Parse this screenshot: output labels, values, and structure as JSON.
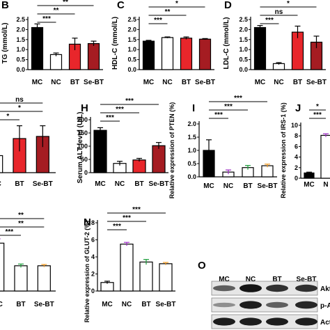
{
  "colors": {
    "mc": "#000000",
    "nc": "#ffffff",
    "bt": "#e8262b",
    "sebt": "#a51c22",
    "purple": "#9b27c4",
    "green": "#1a9e3a",
    "orange": "#f29a1f"
  },
  "western_blot": {
    "panel_letter": "O",
    "lanes": [
      "MC",
      "NC",
      "BT",
      "Se-BT"
    ],
    "bands": [
      {
        "label": "Akt",
        "intensity": [
          0.55,
          0.95,
          0.8,
          0.8
        ]
      },
      {
        "label": "p-A",
        "intensity": [
          0.3,
          0.9,
          0.55,
          0.85
        ]
      },
      {
        "label": "Act",
        "intensity": [
          0.9,
          0.9,
          0.9,
          0.9
        ]
      }
    ]
  },
  "chart_data": [
    {
      "panel": "B",
      "type": "bar",
      "categories": [
        "MC",
        "NC",
        "BT",
        "Se-BT"
      ],
      "values": [
        2.1,
        0.75,
        1.27,
        1.3
      ],
      "errors": [
        0.18,
        0.08,
        0.3,
        0.12
      ],
      "ylabel": "TG (mmol/L)",
      "yticks": [
        "0.0",
        "0.5",
        "1.0",
        "1.5",
        "2.0",
        "2.5"
      ],
      "ylim": [
        0,
        2.5
      ],
      "significance": [
        "**",
        "**",
        "***"
      ]
    },
    {
      "panel": "C",
      "type": "bar",
      "categories": [
        "MC",
        "NC",
        "BT",
        "Se-BT"
      ],
      "values": [
        1.42,
        1.6,
        1.57,
        1.52
      ],
      "errors": [
        0.04,
        0.03,
        0.06,
        0.03
      ],
      "ylabel": "HDL-C (mmol/L)",
      "yticks": [
        "0.0",
        "0.5",
        "1.0",
        "1.5",
        "2.0",
        "2.5"
      ],
      "ylim": [
        0,
        2.5
      ],
      "significance": [
        "*",
        "**",
        "***"
      ]
    },
    {
      "panel": "D",
      "type": "bar",
      "categories": [
        "MC",
        "NC",
        "BT",
        "Se-BT"
      ],
      "values": [
        2.1,
        0.3,
        1.87,
        1.37
      ],
      "errors": [
        0.1,
        0.05,
        0.3,
        0.3
      ],
      "ylabel": "LDL-C (mmol/L)",
      "yticks": [
        "0.0",
        "0.5",
        "1.0",
        "1.5",
        "2.0",
        "2.5"
      ],
      "ylim": [
        0,
        2.5
      ],
      "significance": [
        "*",
        "ns",
        "***"
      ]
    },
    {
      "panel": "",
      "type": "bar",
      "categories": [
        "NC",
        "BT",
        "Se-BT"
      ],
      "values": [
        0.4,
        0.8,
        0.85
      ],
      "errors": [
        0.2,
        0.3,
        0.25
      ],
      "ylabel": "",
      "yticks": [],
      "ylim": [
        0,
        1.6
      ],
      "significance": [
        "ns",
        "*",
        "*"
      ]
    },
    {
      "panel": "H",
      "type": "bar",
      "categories": [
        "MC",
        "NC",
        "BT",
        "Se-BT"
      ],
      "values": [
        160,
        35,
        48,
        102
      ],
      "errors": [
        10,
        8,
        6,
        12
      ],
      "ylabel": "Serum ALT level (U/L)",
      "yticks": [
        "0",
        "50",
        "100",
        "150",
        "200"
      ],
      "ylim": [
        0,
        200
      ],
      "significance": [
        "***",
        "***",
        "***"
      ]
    },
    {
      "panel": "I",
      "type": "bar",
      "categories": [
        "MC",
        "NC",
        "BT",
        "Se-BT"
      ],
      "values": [
        1.0,
        0.18,
        0.35,
        0.42
      ],
      "errors": [
        0.4,
        0.08,
        0.08,
        0.06
      ],
      "ylabel": "Relative expression of PTEN (%)",
      "yticks": [
        "0.0",
        "0.5",
        "1.0",
        "1.5",
        "2.0"
      ],
      "ylim": [
        0,
        2.0
      ],
      "significance": [
        "***",
        "***",
        "***"
      ]
    },
    {
      "panel": "J",
      "type": "bar",
      "categories": [
        "MC",
        "NC"
      ],
      "category_labels": [
        "MC",
        "N"
      ],
      "values": [
        1.0,
        8.1
      ],
      "errors": [
        0.15,
        0.3
      ],
      "ylabel": "Relative expression of IRS-1 (%)",
      "yticks": [
        "0",
        "2",
        "4",
        "6",
        "8",
        "10"
      ],
      "ylim": [
        0,
        10
      ],
      "significance": [
        "*",
        "***"
      ]
    },
    {
      "panel": "",
      "type": "bar",
      "categories": [
        "NC",
        "BT",
        "Se-BT"
      ],
      "values": [
        5.5,
        2.9,
        2.9
      ],
      "errors": [
        0.5,
        0.2,
        0.15
      ],
      "ylabel": "",
      "yticks": [],
      "ylim": [
        0,
        8
      ],
      "significance": [
        "**",
        "**",
        "***"
      ]
    },
    {
      "panel": "N",
      "type": "bar",
      "categories": [
        "MC",
        "NC",
        "BT",
        "Se-BT"
      ],
      "values": [
        1.0,
        5.5,
        3.4,
        3.2
      ],
      "errors": [
        0.15,
        0.2,
        0.3,
        0.15
      ],
      "ylabel": "Relative expression of GLUT-2 (%)",
      "yticks": [
        "0",
        "2",
        "4",
        "6",
        "8"
      ],
      "ylim": [
        0,
        8
      ],
      "significance": [
        "***",
        "***",
        "***"
      ]
    }
  ]
}
